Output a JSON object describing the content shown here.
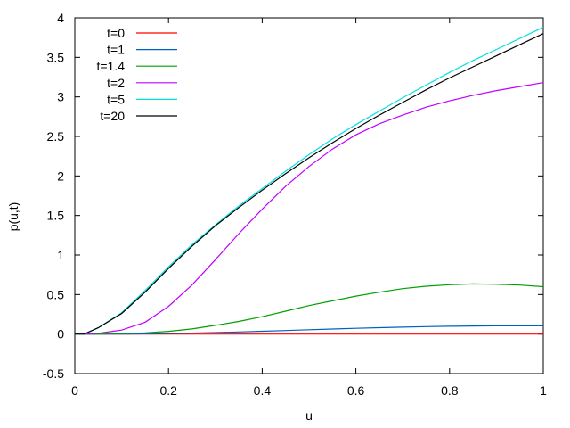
{
  "chart_data": {
    "type": "line",
    "title": "",
    "xlabel": "u",
    "ylabel": "p(u,t)",
    "xlim": [
      0,
      1
    ],
    "ylim": [
      -0.5,
      4
    ],
    "xticks": [
      0,
      0.2,
      0.4,
      0.6,
      0.8,
      1
    ],
    "xtick_labels": [
      "0",
      "0.2",
      "0.4",
      "0.6",
      "0.8",
      "1"
    ],
    "yticks": [
      -0.5,
      0,
      0.5,
      1,
      1.5,
      2,
      2.5,
      3,
      3.5,
      4
    ],
    "ytick_labels": [
      "-0.5",
      "0",
      "0.5",
      "1",
      "1.5",
      "2",
      "2.5",
      "3",
      "3.5",
      "4"
    ],
    "grid": false,
    "legend_position": "top-left",
    "x": [
      0,
      0.02,
      0.05,
      0.1,
      0.15,
      0.2,
      0.25,
      0.3,
      0.35,
      0.4,
      0.45,
      0.5,
      0.55,
      0.6,
      0.65,
      0.7,
      0.75,
      0.8,
      0.85,
      0.9,
      0.95,
      1.0
    ],
    "series": [
      {
        "name": "t=0",
        "color": "#ff0000",
        "values": [
          0,
          0,
          0,
          0,
          0,
          0,
          0,
          0,
          0,
          0,
          0,
          0,
          0,
          0,
          0,
          0,
          0,
          0,
          0,
          0,
          0,
          0
        ]
      },
      {
        "name": "t=1",
        "color": "#0060c0",
        "values": [
          0,
          0,
          0,
          0.001,
          0.003,
          0.007,
          0.012,
          0.019,
          0.027,
          0.036,
          0.045,
          0.055,
          0.064,
          0.073,
          0.081,
          0.088,
          0.094,
          0.099,
          0.102,
          0.104,
          0.105,
          0.105
        ]
      },
      {
        "name": "t=1.4",
        "color": "#00a000",
        "values": [
          0,
          0,
          0.001,
          0.005,
          0.015,
          0.035,
          0.065,
          0.11,
          0.16,
          0.22,
          0.29,
          0.36,
          0.42,
          0.48,
          0.53,
          0.575,
          0.605,
          0.625,
          0.635,
          0.63,
          0.62,
          0.6
        ]
      },
      {
        "name": "t=2",
        "color": "#c000ff",
        "values": [
          0,
          0,
          0.01,
          0.05,
          0.15,
          0.35,
          0.62,
          0.94,
          1.27,
          1.58,
          1.87,
          2.12,
          2.34,
          2.52,
          2.66,
          2.77,
          2.87,
          2.95,
          3.02,
          3.08,
          3.13,
          3.18
        ]
      },
      {
        "name": "t=5",
        "color": "#00e0e0",
        "values": [
          0,
          0,
          0.08,
          0.27,
          0.55,
          0.85,
          1.13,
          1.38,
          1.62,
          1.84,
          2.06,
          2.27,
          2.47,
          2.65,
          2.82,
          2.99,
          3.15,
          3.31,
          3.46,
          3.6,
          3.74,
          3.88
        ]
      },
      {
        "name": "t=20",
        "color": "#000000",
        "values": [
          0,
          0,
          0.08,
          0.26,
          0.53,
          0.83,
          1.11,
          1.37,
          1.6,
          1.82,
          2.03,
          2.23,
          2.42,
          2.6,
          2.77,
          2.93,
          3.09,
          3.24,
          3.38,
          3.52,
          3.66,
          3.8
        ]
      }
    ]
  }
}
